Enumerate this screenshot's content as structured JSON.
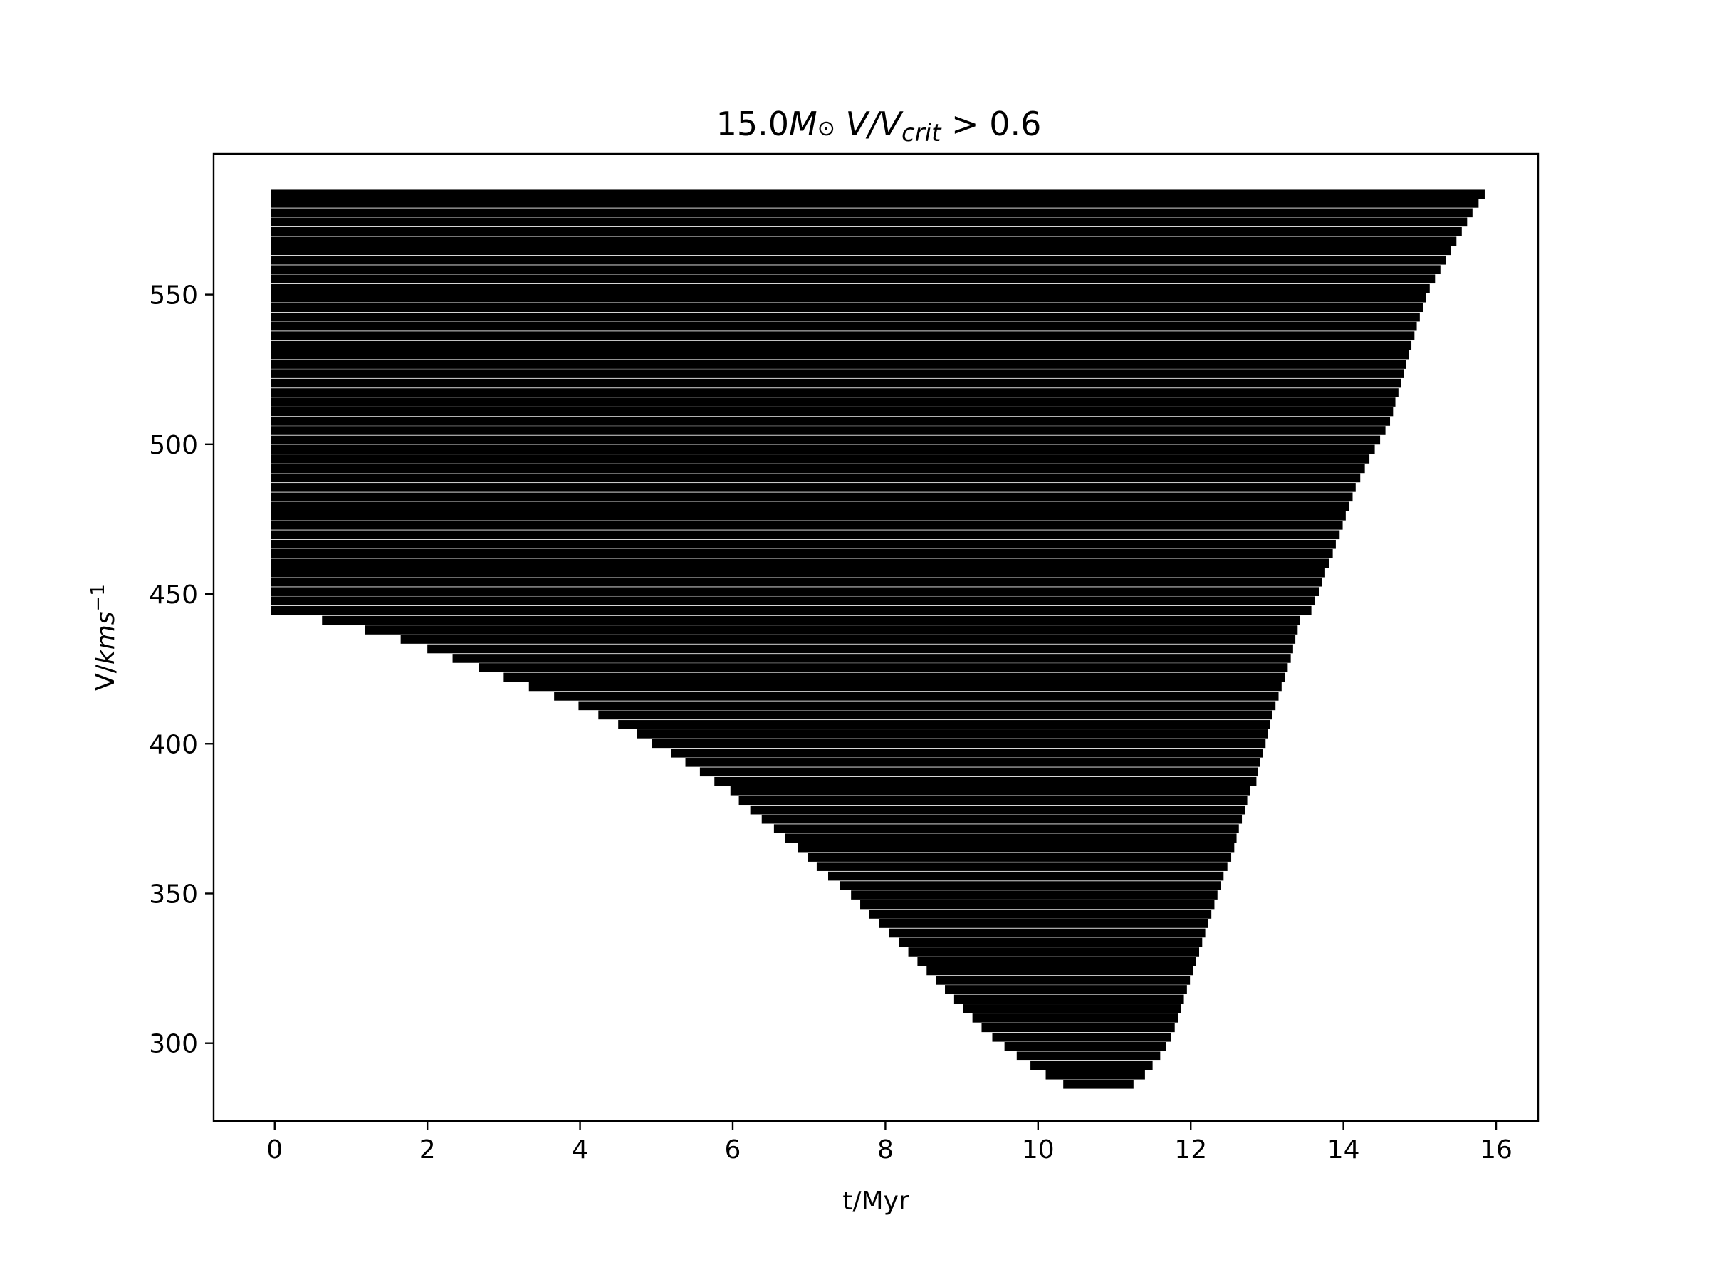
{
  "chart_data": {
    "type": "bar",
    "orientation": "horizontal",
    "title": "15.0M⊙ V/Vcrit > 0.6",
    "title_parts": {
      "mass": "15.0",
      "M": "M",
      "sun": "⊙",
      "V": " V/V",
      "crit": "crit",
      "rest": " > 0.6"
    },
    "xlabel": "t/Myr",
    "ylabel_parts": {
      "base": "V/",
      "unit": "kms",
      "exp": "−1"
    },
    "xlim": [
      -0.8,
      16.55
    ],
    "ylim": [
      274,
      597
    ],
    "xticks": [
      0,
      2,
      4,
      6,
      8,
      10,
      12,
      14,
      16
    ],
    "yticks": [
      300,
      350,
      400,
      450,
      500,
      550
    ],
    "bar_color": "#000000",
    "bar_height": 3.0,
    "bars_note": "Each bar spans [start, end] in t/Myr at speed y (km/s); listed as [y, start, end].",
    "bars": [
      [
        583.5,
        -0.05,
        15.85
      ],
      [
        580.5,
        -0.05,
        15.77
      ],
      [
        577.3,
        -0.05,
        15.69
      ],
      [
        574.2,
        -0.05,
        15.62
      ],
      [
        571.0,
        -0.05,
        15.55
      ],
      [
        567.8,
        -0.05,
        15.48
      ],
      [
        564.7,
        -0.05,
        15.41
      ],
      [
        561.5,
        -0.05,
        15.34
      ],
      [
        558.3,
        -0.05,
        15.27
      ],
      [
        555.2,
        -0.05,
        15.2
      ],
      [
        552.0,
        -0.05,
        15.13
      ],
      [
        548.9,
        -0.05,
        15.08
      ],
      [
        545.7,
        -0.05,
        15.04
      ],
      [
        542.5,
        -0.05,
        15.0
      ],
      [
        539.4,
        -0.05,
        14.96
      ],
      [
        536.2,
        -0.05,
        14.93
      ],
      [
        533.0,
        -0.05,
        14.89
      ],
      [
        529.9,
        -0.05,
        14.86
      ],
      [
        526.7,
        -0.05,
        14.82
      ],
      [
        523.6,
        -0.05,
        14.79
      ],
      [
        520.4,
        -0.05,
        14.75
      ],
      [
        517.2,
        -0.05,
        14.72
      ],
      [
        514.1,
        -0.05,
        14.68
      ],
      [
        510.9,
        -0.05,
        14.65
      ],
      [
        507.7,
        -0.05,
        14.61
      ],
      [
        504.6,
        -0.05,
        14.55
      ],
      [
        501.4,
        -0.05,
        14.48
      ],
      [
        498.3,
        -0.05,
        14.41
      ],
      [
        495.1,
        -0.05,
        14.34
      ],
      [
        491.9,
        -0.05,
        14.28
      ],
      [
        488.8,
        -0.05,
        14.22
      ],
      [
        485.6,
        -0.05,
        14.16
      ],
      [
        482.4,
        -0.05,
        14.12
      ],
      [
        479.3,
        -0.05,
        14.07
      ],
      [
        476.1,
        -0.05,
        14.03
      ],
      [
        473.0,
        -0.05,
        13.99
      ],
      [
        469.8,
        -0.05,
        13.95
      ],
      [
        466.6,
        -0.05,
        13.9
      ],
      [
        463.5,
        -0.05,
        13.86
      ],
      [
        460.3,
        -0.05,
        13.81
      ],
      [
        457.1,
        -0.05,
        13.76
      ],
      [
        454.0,
        -0.05,
        13.72
      ],
      [
        450.8,
        -0.05,
        13.68
      ],
      [
        447.7,
        -0.05,
        13.63
      ],
      [
        444.5,
        -0.05,
        13.58
      ],
      [
        441.2,
        0.62,
        13.43
      ],
      [
        438.0,
        1.18,
        13.4
      ],
      [
        434.9,
        1.65,
        13.37
      ],
      [
        431.7,
        2.0,
        13.34
      ],
      [
        428.5,
        2.33,
        13.31
      ],
      [
        425.4,
        2.67,
        13.27
      ],
      [
        422.2,
        3.0,
        13.23
      ],
      [
        419.1,
        3.33,
        13.19
      ],
      [
        415.9,
        3.66,
        13.15
      ],
      [
        412.7,
        3.98,
        13.11
      ],
      [
        409.6,
        4.24,
        13.07
      ],
      [
        406.4,
        4.5,
        13.04
      ],
      [
        403.3,
        4.75,
        13.01
      ],
      [
        400.1,
        4.94,
        12.98
      ],
      [
        396.9,
        5.19,
        12.94
      ],
      [
        393.8,
        5.38,
        12.91
      ],
      [
        390.6,
        5.57,
        12.88
      ],
      [
        387.4,
        5.76,
        12.86
      ],
      [
        384.3,
        5.97,
        12.78
      ],
      [
        381.1,
        6.08,
        12.74
      ],
      [
        377.9,
        6.23,
        12.71
      ],
      [
        374.8,
        6.38,
        12.67
      ],
      [
        371.6,
        6.54,
        12.63
      ],
      [
        368.5,
        6.69,
        12.6
      ],
      [
        365.3,
        6.85,
        12.57
      ],
      [
        362.1,
        6.98,
        12.53
      ],
      [
        359.0,
        7.1,
        12.48
      ],
      [
        355.8,
        7.25,
        12.43
      ],
      [
        352.6,
        7.4,
        12.39
      ],
      [
        349.5,
        7.55,
        12.35
      ],
      [
        346.3,
        7.67,
        12.31
      ],
      [
        343.1,
        7.79,
        12.27
      ],
      [
        340.0,
        7.92,
        12.23
      ],
      [
        336.8,
        8.05,
        12.19
      ],
      [
        333.7,
        8.18,
        12.15
      ],
      [
        330.5,
        8.3,
        12.11
      ],
      [
        327.3,
        8.42,
        12.07
      ],
      [
        324.2,
        8.54,
        12.03
      ],
      [
        321.0,
        8.66,
        11.99
      ],
      [
        317.9,
        8.78,
        11.95
      ],
      [
        314.7,
        8.9,
        11.91
      ],
      [
        311.5,
        9.02,
        11.87
      ],
      [
        308.4,
        9.14,
        11.83
      ],
      [
        305.2,
        9.26,
        11.79
      ],
      [
        302.0,
        9.4,
        11.74
      ],
      [
        298.9,
        9.56,
        11.68
      ],
      [
        295.7,
        9.72,
        11.6
      ],
      [
        292.5,
        9.9,
        11.5
      ],
      [
        289.4,
        10.1,
        11.4
      ],
      [
        286.3,
        10.33,
        11.25
      ]
    ]
  }
}
